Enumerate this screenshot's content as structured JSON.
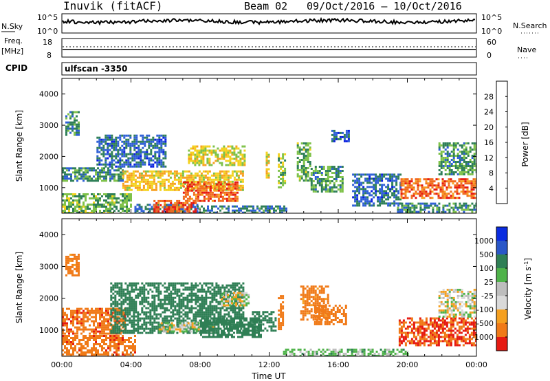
{
  "header": {
    "station": "Inuvik (fitACF)",
    "beam": "Beam 02",
    "date_range": "09/Oct/2016 – 10/Oct/2016"
  },
  "noise_panel": {
    "left_label": "N.Sky",
    "left_ticks": [
      "10^5",
      "10^0"
    ],
    "right_label": "N.Search",
    "right_ticks": [
      "10^5",
      "10^0"
    ]
  },
  "freq_panel": {
    "left_label_1": "Freq.",
    "left_label_2": "[MHz]",
    "left_ticks": [
      "18",
      "8"
    ],
    "right_label": "Nave",
    "right_ticks": [
      "60",
      "0"
    ]
  },
  "cpid": {
    "label": "CPID",
    "value": "ulfscan -3350"
  },
  "chart_data": [
    {
      "type": "heatmap",
      "name": "power",
      "ylabel": "Slant Range [km]",
      "ylim": [
        180,
        4500
      ],
      "yticks": [
        1000,
        2000,
        3000,
        4000
      ],
      "xlabel": "",
      "xlim": [
        0,
        24
      ],
      "colorbar_label": "Power [dB]",
      "colorbar_ticks": [
        "4",
        "8",
        "12",
        "16",
        "20",
        "24",
        "28"
      ],
      "colorbar_colors": [
        "#0a1fe0",
        "#2e5fd6",
        "#2e7f57",
        "#7fc24a",
        "#f3d21f",
        "#f7a020",
        "#f16a1e",
        "#e61a12"
      ],
      "regions": [
        {
          "t0": 0.2,
          "t1": 1.0,
          "r0": 2700,
          "r1": 3450,
          "v": 10
        },
        {
          "t0": 0.0,
          "t1": 3.5,
          "r0": 1200,
          "r1": 1650,
          "v": 10
        },
        {
          "t0": 3.5,
          "t1": 10.5,
          "r0": 900,
          "r1": 1550,
          "v": 19
        },
        {
          "t0": 7.0,
          "t1": 10.2,
          "r0": 600,
          "r1": 1200,
          "v": 26
        },
        {
          "t0": 2.0,
          "t1": 6.0,
          "r0": 1650,
          "r1": 2700,
          "v": 7
        },
        {
          "t0": 7.3,
          "t1": 10.6,
          "r0": 1750,
          "r1": 2350,
          "v": 17
        },
        {
          "t0": 4.2,
          "t1": 7.8,
          "r0": 180,
          "r1": 480,
          "v": 8
        },
        {
          "t0": 5.3,
          "t1": 7.8,
          "r0": 180,
          "r1": 600,
          "v": 27
        },
        {
          "t0": 0.0,
          "t1": 4.0,
          "r0": 180,
          "r1": 820,
          "v": 13
        },
        {
          "t0": 7.8,
          "t1": 13.0,
          "r0": 180,
          "r1": 430,
          "v": 9
        },
        {
          "t0": 11.8,
          "t1": 12.0,
          "r0": 1300,
          "r1": 2150,
          "v": 18
        },
        {
          "t0": 12.5,
          "t1": 12.9,
          "r0": 1000,
          "r1": 2100,
          "v": 14
        },
        {
          "t0": 13.6,
          "t1": 14.4,
          "r0": 1200,
          "r1": 2450,
          "v": 13
        },
        {
          "t0": 14.4,
          "t1": 16.2,
          "r0": 900,
          "r1": 1700,
          "v": 11
        },
        {
          "t0": 15.6,
          "t1": 16.6,
          "r0": 2500,
          "r1": 2850,
          "v": 6
        },
        {
          "t0": 16.8,
          "t1": 19.6,
          "r0": 400,
          "r1": 1450,
          "v": 7
        },
        {
          "t0": 19.6,
          "t1": 24.0,
          "r0": 650,
          "r1": 1300,
          "v": 26
        },
        {
          "t0": 19.4,
          "t1": 24.0,
          "r0": 180,
          "r1": 520,
          "v": 10
        },
        {
          "t0": 21.8,
          "t1": 24.0,
          "r0": 1400,
          "r1": 2450,
          "v": 11
        }
      ]
    },
    {
      "type": "heatmap",
      "name": "velocity",
      "ylabel": "Slant Range [km]",
      "ylim": [
        180,
        4500
      ],
      "yticks": [
        1000,
        2000,
        3000,
        4000
      ],
      "xlabel": "Time UT",
      "xlim": [
        0,
        24
      ],
      "xticks": [
        "00:00",
        "04:00",
        "08:00",
        "12:00",
        "16:00",
        "20:00",
        "00:00"
      ],
      "colorbar_label": "Velocity [m s^-1]",
      "colorbar_ticks": [
        "1000",
        "500",
        "100",
        "25",
        "-25",
        "-100",
        "-500",
        "-1000"
      ],
      "colorbar_colors": [
        "#0a2ce0",
        "#2a57c8",
        "#2f7f55",
        "#4fb34a",
        "#bdbdbd",
        "#d9d9d9",
        "#f5a020",
        "#f07a18",
        "#e61a12"
      ],
      "regions": [
        {
          "t0": 0.2,
          "t1": 1.0,
          "r0": 2700,
          "r1": 3400,
          "v": -150
        },
        {
          "t0": 0.0,
          "t1": 3.6,
          "r0": 900,
          "r1": 1700,
          "v": -450
        },
        {
          "t0": 0.0,
          "t1": 4.2,
          "r0": 180,
          "r1": 850,
          "v": -450
        },
        {
          "t0": 2.8,
          "t1": 10.5,
          "r0": 900,
          "r1": 2500,
          "v": 250
        },
        {
          "t0": 5.6,
          "t1": 8.8,
          "r0": 950,
          "r1": 1250,
          "v": 0
        },
        {
          "t0": 9.2,
          "t1": 10.8,
          "r0": 1800,
          "r1": 2200,
          "v": 0
        },
        {
          "t0": 8.0,
          "t1": 11.5,
          "r0": 800,
          "r1": 1400,
          "v": 300
        },
        {
          "t0": 11.0,
          "t1": 12.4,
          "r0": 1000,
          "r1": 1600,
          "v": 300
        },
        {
          "t0": 12.5,
          "t1": 12.8,
          "r0": 1000,
          "r1": 2100,
          "v": -200
        },
        {
          "t0": 13.8,
          "t1": 15.4,
          "r0": 1300,
          "r1": 2400,
          "v": -150
        },
        {
          "t0": 14.6,
          "t1": 16.4,
          "r0": 1200,
          "r1": 1800,
          "v": -400
        },
        {
          "t0": 19.5,
          "t1": 24.0,
          "r0": 500,
          "r1": 1400,
          "v": -500
        },
        {
          "t0": 21.8,
          "t1": 24.0,
          "r0": 1400,
          "r1": 2300,
          "v": 0
        },
        {
          "t0": 12.8,
          "t1": 20.0,
          "r0": 180,
          "r1": 420,
          "v": 50
        }
      ]
    }
  ]
}
